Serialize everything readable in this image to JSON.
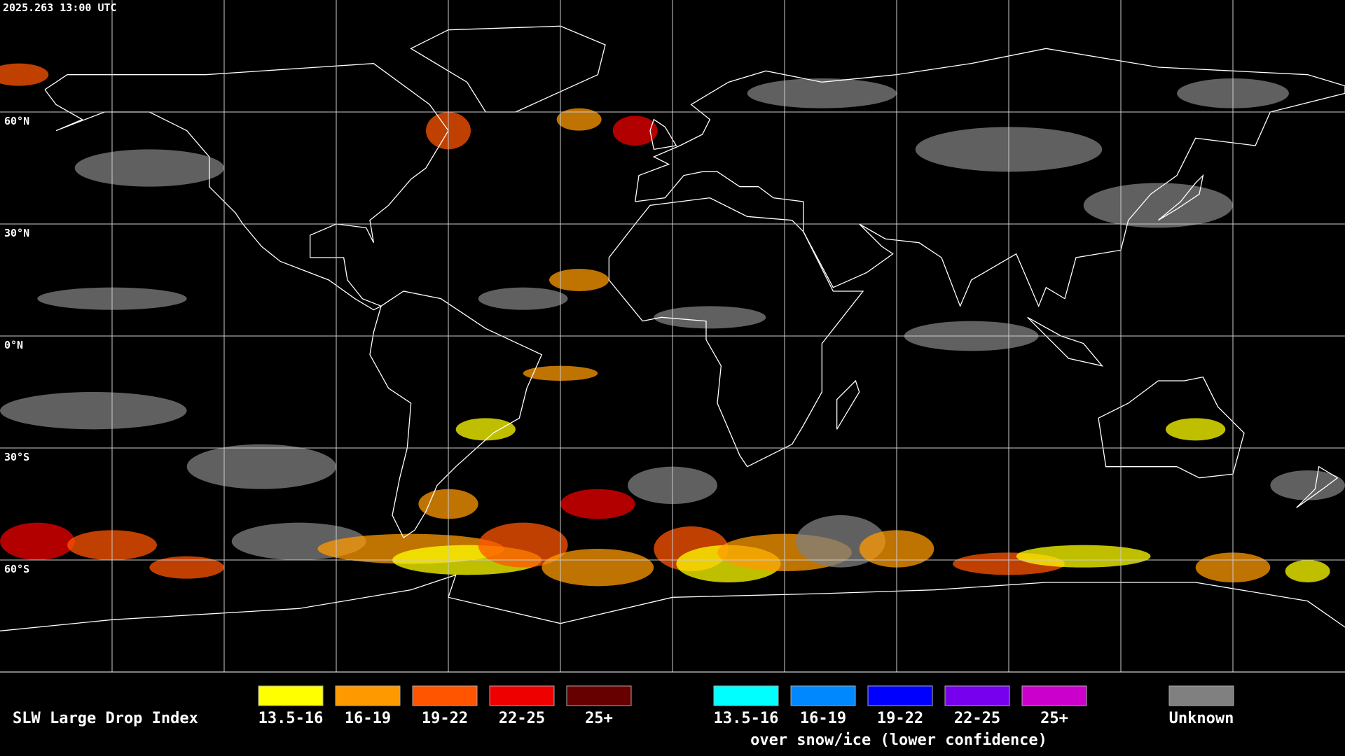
{
  "timestamp": "2025.263 13:00 UTC",
  "lat_labels": [
    "60°N",
    "30°N",
    "0°N",
    "30°S",
    "60°S"
  ],
  "legend": {
    "title": "SLW Large Drop Index",
    "items": [
      {
        "label": "13.5-16",
        "color": "#ffff00"
      },
      {
        "label": "16-19",
        "color": "#ff9900"
      },
      {
        "label": "19-22",
        "color": "#ff5500"
      },
      {
        "label": "22-25",
        "color": "#ee0000"
      },
      {
        "label": "25+",
        "color": "#660000"
      }
    ],
    "snow_items": [
      {
        "label": "13.5-16",
        "color": "#00ffff"
      },
      {
        "label": "16-19",
        "color": "#0088ff"
      },
      {
        "label": "19-22",
        "color": "#0000ff"
      },
      {
        "label": "22-25",
        "color": "#7700ee"
      },
      {
        "label": "25+",
        "color": "#cc00cc"
      }
    ],
    "snow_note": "over snow/ice (lower confidence)",
    "unknown": {
      "label": "Unknown",
      "color": "#808080"
    }
  }
}
